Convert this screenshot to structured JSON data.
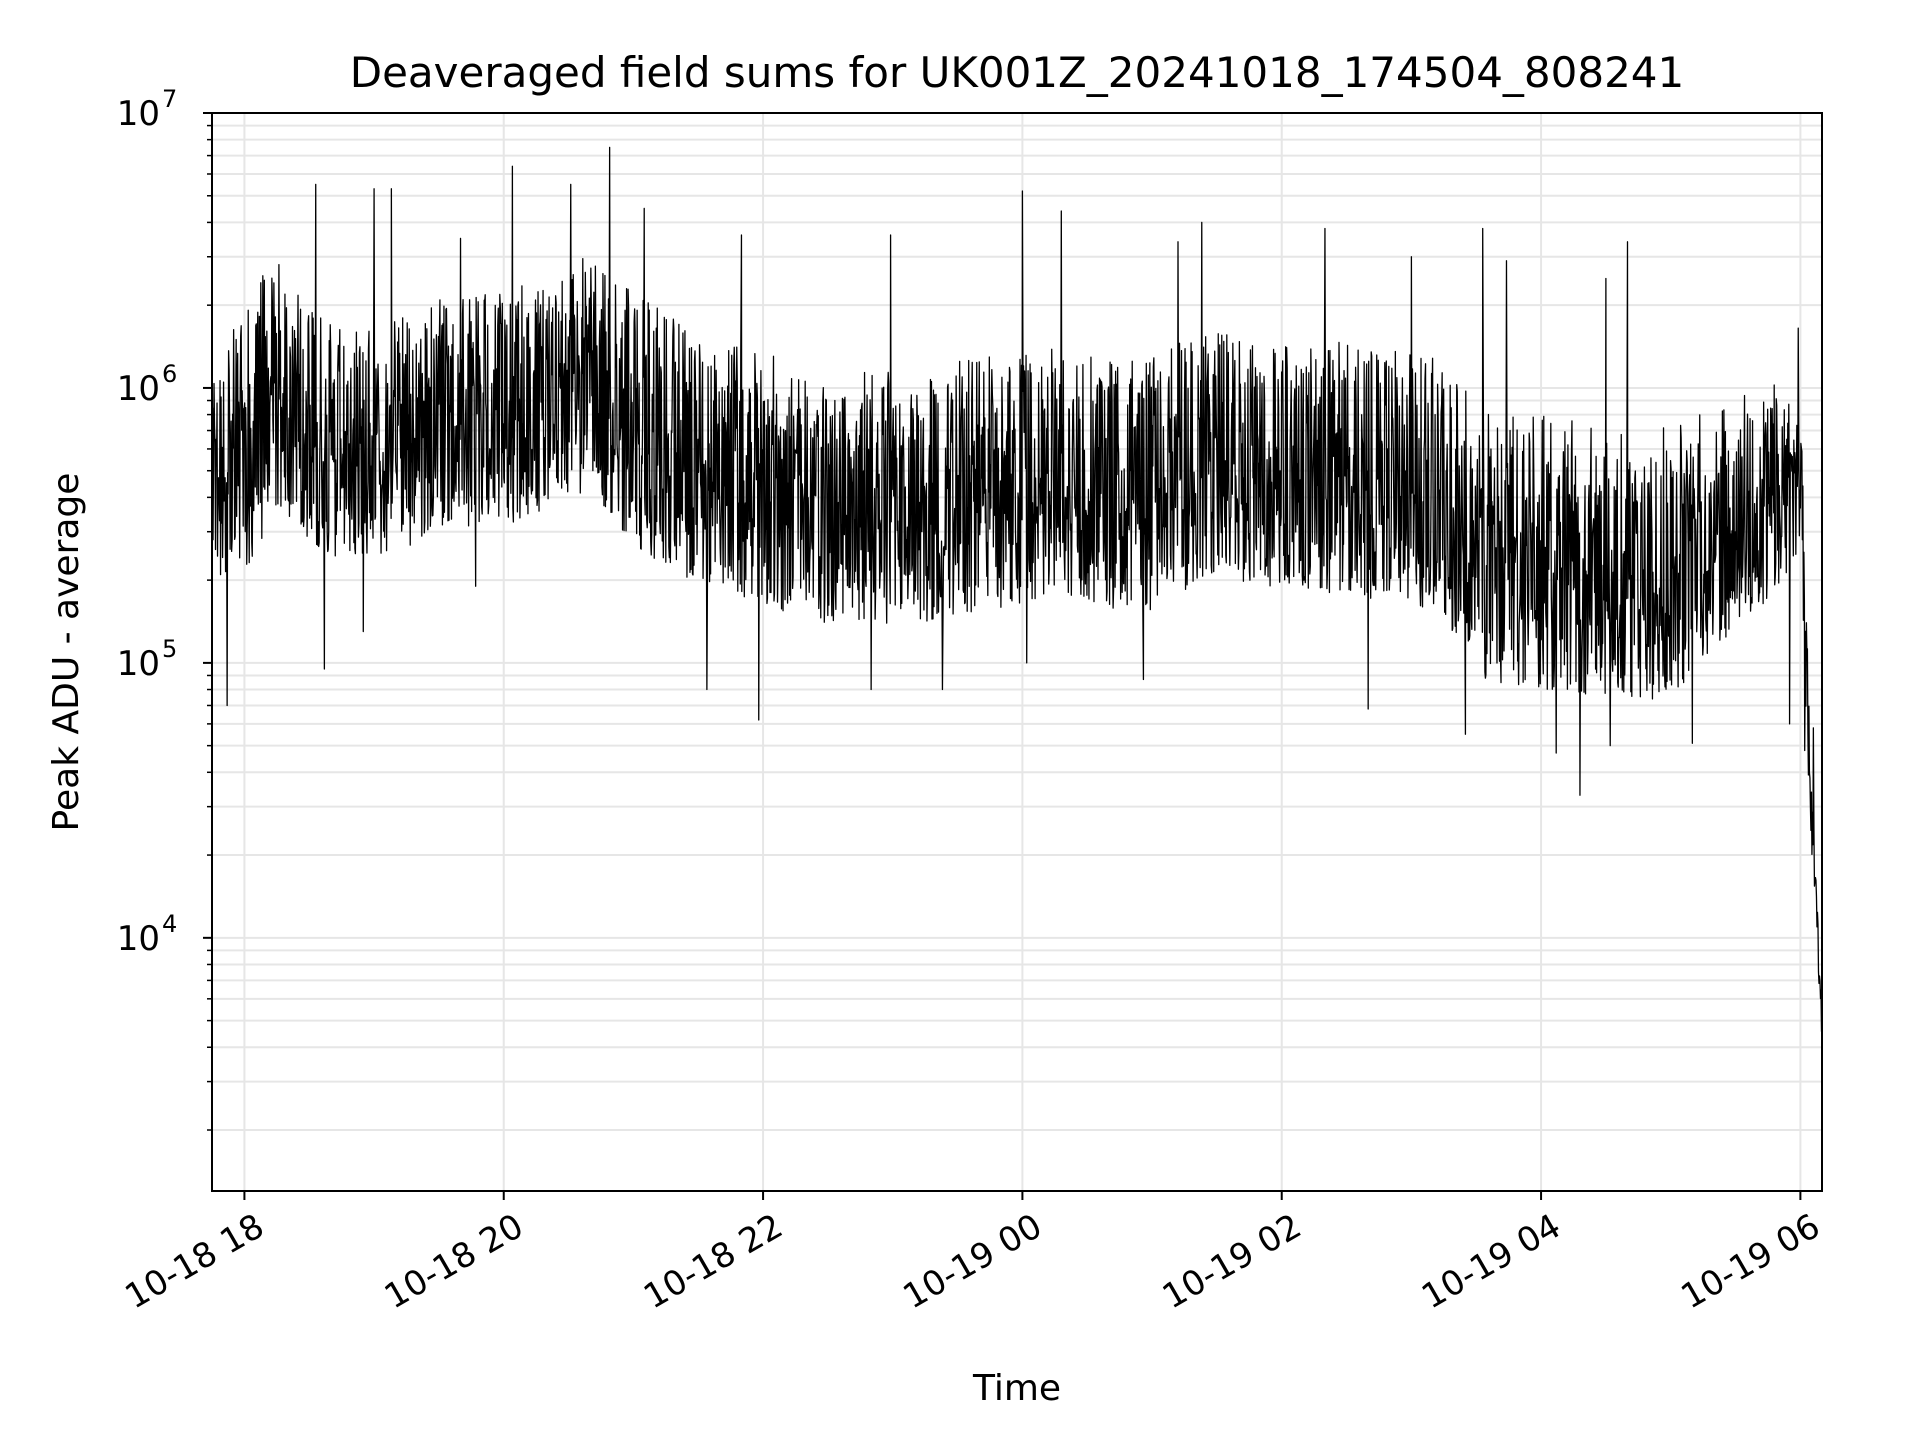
{
  "chart_data": {
    "type": "line",
    "title": "Deaveraged field sums for UK001Z_20241018_174504_808241",
    "xlabel": "Time",
    "ylabel": "Peak ADU - average",
    "yscale": "log",
    "ylim": [
      1200,
      10000000
    ],
    "xlim": [
      "2024-10-18 17:45",
      "2024-10-19 06:10"
    ],
    "grid": true,
    "line_color": "#000000",
    "x_ticks": [
      {
        "label": "10-18 18",
        "value": "2024-10-18 18:00"
      },
      {
        "label": "10-18 20",
        "value": "2024-10-18 20:00"
      },
      {
        "label": "10-18 22",
        "value": "2024-10-18 22:00"
      },
      {
        "label": "10-19 00",
        "value": "2024-10-19 00:00"
      },
      {
        "label": "10-19 02",
        "value": "2024-10-19 02:00"
      },
      {
        "label": "10-19 04",
        "value": "2024-10-19 04:00"
      },
      {
        "label": "10-19 06",
        "value": "2024-10-19 06:00"
      }
    ],
    "y_ticks": [
      {
        "base": "10",
        "exp": "4",
        "value": 10000
      },
      {
        "base": "10",
        "exp": "5",
        "value": 100000
      },
      {
        "base": "10",
        "exp": "6",
        "value": 1000000
      },
      {
        "base": "10",
        "exp": "7",
        "value": 10000000
      }
    ],
    "series": [
      {
        "x": [
          "2024-10-18 17:45",
          "2024-10-18 18:00",
          "2024-10-18 18:15",
          "2024-10-18 18:30",
          "2024-10-18 18:45",
          "2024-10-18 19:00",
          "2024-10-18 19:15",
          "2024-10-18 19:30",
          "2024-10-18 19:45",
          "2024-10-18 20:00",
          "2024-10-18 20:15",
          "2024-10-18 20:30",
          "2024-10-18 20:45",
          "2024-10-18 21:00",
          "2024-10-18 21:15",
          "2024-10-18 21:30",
          "2024-10-18 21:45",
          "2024-10-18 22:00",
          "2024-10-18 22:15",
          "2024-10-18 22:30",
          "2024-10-18 22:45",
          "2024-10-18 23:00",
          "2024-10-18 23:15",
          "2024-10-18 23:30",
          "2024-10-18 23:45",
          "2024-10-19 00:00",
          "2024-10-19 00:15",
          "2024-10-19 00:30",
          "2024-10-19 00:45",
          "2024-10-19 01:00",
          "2024-10-19 01:15",
          "2024-10-19 01:30",
          "2024-10-19 01:45",
          "2024-10-19 02:00",
          "2024-10-19 02:15",
          "2024-10-19 02:30",
          "2024-10-19 02:45",
          "2024-10-19 03:00",
          "2024-10-19 03:15",
          "2024-10-19 03:30",
          "2024-10-19 03:45",
          "2024-10-19 04:00",
          "2024-10-19 04:15",
          "2024-10-19 04:30",
          "2024-10-19 04:45",
          "2024-10-19 05:00",
          "2024-10-19 05:15",
          "2024-10-19 05:30",
          "2024-10-19 05:45",
          "2024-10-19 06:00",
          "2024-10-19 06:05",
          "2024-10-19 06:10"
        ],
        "y": [
          500000,
          700000,
          1200000,
          800000,
          650000,
          700000,
          750000,
          900000,
          900000,
          900000,
          1000000,
          1200000,
          1100000,
          900000,
          750000,
          650000,
          600000,
          550000,
          480000,
          460000,
          480000,
          460000,
          470000,
          500000,
          520000,
          550000,
          600000,
          560000,
          500000,
          520000,
          600000,
          700000,
          650000,
          620000,
          620000,
          580000,
          560000,
          550000,
          500000,
          350000,
          330000,
          320000,
          310000,
          300000,
          300000,
          290000,
          350000,
          380000,
          420000,
          500000,
          30000,
          6000
        ],
        "noise_low": [
          0.35,
          0.3,
          0.3,
          0.35,
          0.35,
          0.35,
          0.35,
          0.35,
          0.35,
          0.35,
          0.35,
          0.35,
          0.35,
          0.3,
          0.3,
          0.3,
          0.3,
          0.3,
          0.3,
          0.3,
          0.3,
          0.3,
          0.3,
          0.3,
          0.3,
          0.3,
          0.3,
          0.3,
          0.3,
          0.3,
          0.3,
          0.3,
          0.3,
          0.3,
          0.3,
          0.3,
          0.3,
          0.3,
          0.3,
          0.25,
          0.25,
          0.25,
          0.25,
          0.25,
          0.25,
          0.25,
          0.3,
          0.35,
          0.4,
          0.5,
          0.6,
          0.6
        ],
        "noise_high": [
          2.5,
          3,
          2.5,
          2.5,
          2.5,
          2.5,
          2.5,
          2.5,
          2.5,
          2.5,
          2.5,
          3,
          2.5,
          2.5,
          2.5,
          2.5,
          2.5,
          2.5,
          2.5,
          2.5,
          2.5,
          2.5,
          2.5,
          2.5,
          2.5,
          2.5,
          2.5,
          2.5,
          2.5,
          2.5,
          2.5,
          2.5,
          2.5,
          2.5,
          2.5,
          2.5,
          2.5,
          2.5,
          2.5,
          2.5,
          2.5,
          2.5,
          2.5,
          2.5,
          2.5,
          2.5,
          2.5,
          2.5,
          2.5,
          2,
          1.5,
          1.2
        ]
      }
    ],
    "spikes": [
      {
        "x": "2024-10-18 17:52",
        "y": 70000
      },
      {
        "x": "2024-10-18 18:33",
        "y": 5500000
      },
      {
        "x": "2024-10-18 18:37",
        "y": 95000
      },
      {
        "x": "2024-10-18 18:55",
        "y": 130000
      },
      {
        "x": "2024-10-18 19:00",
        "y": 5300000
      },
      {
        "x": "2024-10-18 19:08",
        "y": 5300000
      },
      {
        "x": "2024-10-18 19:40",
        "y": 3500000
      },
      {
        "x": "2024-10-18 19:47",
        "y": 190000
      },
      {
        "x": "2024-10-18 20:04",
        "y": 6400000
      },
      {
        "x": "2024-10-18 20:31",
        "y": 5500000
      },
      {
        "x": "2024-10-18 20:49",
        "y": 7500000
      },
      {
        "x": "2024-10-18 21:05",
        "y": 4500000
      },
      {
        "x": "2024-10-18 21:34",
        "y": 80000
      },
      {
        "x": "2024-10-18 21:50",
        "y": 3600000
      },
      {
        "x": "2024-10-18 21:58",
        "y": 62000
      },
      {
        "x": "2024-10-18 22:50",
        "y": 80000
      },
      {
        "x": "2024-10-18 22:59",
        "y": 3600000
      },
      {
        "x": "2024-10-18 23:23",
        "y": 80000
      },
      {
        "x": "2024-10-19 00:00",
        "y": 5200000
      },
      {
        "x": "2024-10-19 00:02",
        "y": 100000
      },
      {
        "x": "2024-10-19 00:18",
        "y": 4400000
      },
      {
        "x": "2024-10-19 00:56",
        "y": 87000
      },
      {
        "x": "2024-10-19 01:12",
        "y": 3400000
      },
      {
        "x": "2024-10-19 01:23",
        "y": 4000000
      },
      {
        "x": "2024-10-19 02:20",
        "y": 3800000
      },
      {
        "x": "2024-10-19 02:40",
        "y": 68000
      },
      {
        "x": "2024-10-19 03:00",
        "y": 3000000
      },
      {
        "x": "2024-10-19 03:25",
        "y": 55000
      },
      {
        "x": "2024-10-19 03:33",
        "y": 3800000
      },
      {
        "x": "2024-10-19 03:44",
        "y": 2900000
      },
      {
        "x": "2024-10-19 04:07",
        "y": 47000
      },
      {
        "x": "2024-10-19 04:18",
        "y": 33000
      },
      {
        "x": "2024-10-19 04:30",
        "y": 2500000
      },
      {
        "x": "2024-10-19 04:32",
        "y": 50000
      },
      {
        "x": "2024-10-19 04:40",
        "y": 3400000
      },
      {
        "x": "2024-10-19 05:10",
        "y": 51000
      },
      {
        "x": "2024-10-19 05:55",
        "y": 60000
      },
      {
        "x": "2024-10-19 05:59",
        "y": 1650000
      },
      {
        "x": "2024-10-19 06:02",
        "y": 48000
      },
      {
        "x": "2024-10-19 06:06",
        "y": 58000
      }
    ]
  }
}
